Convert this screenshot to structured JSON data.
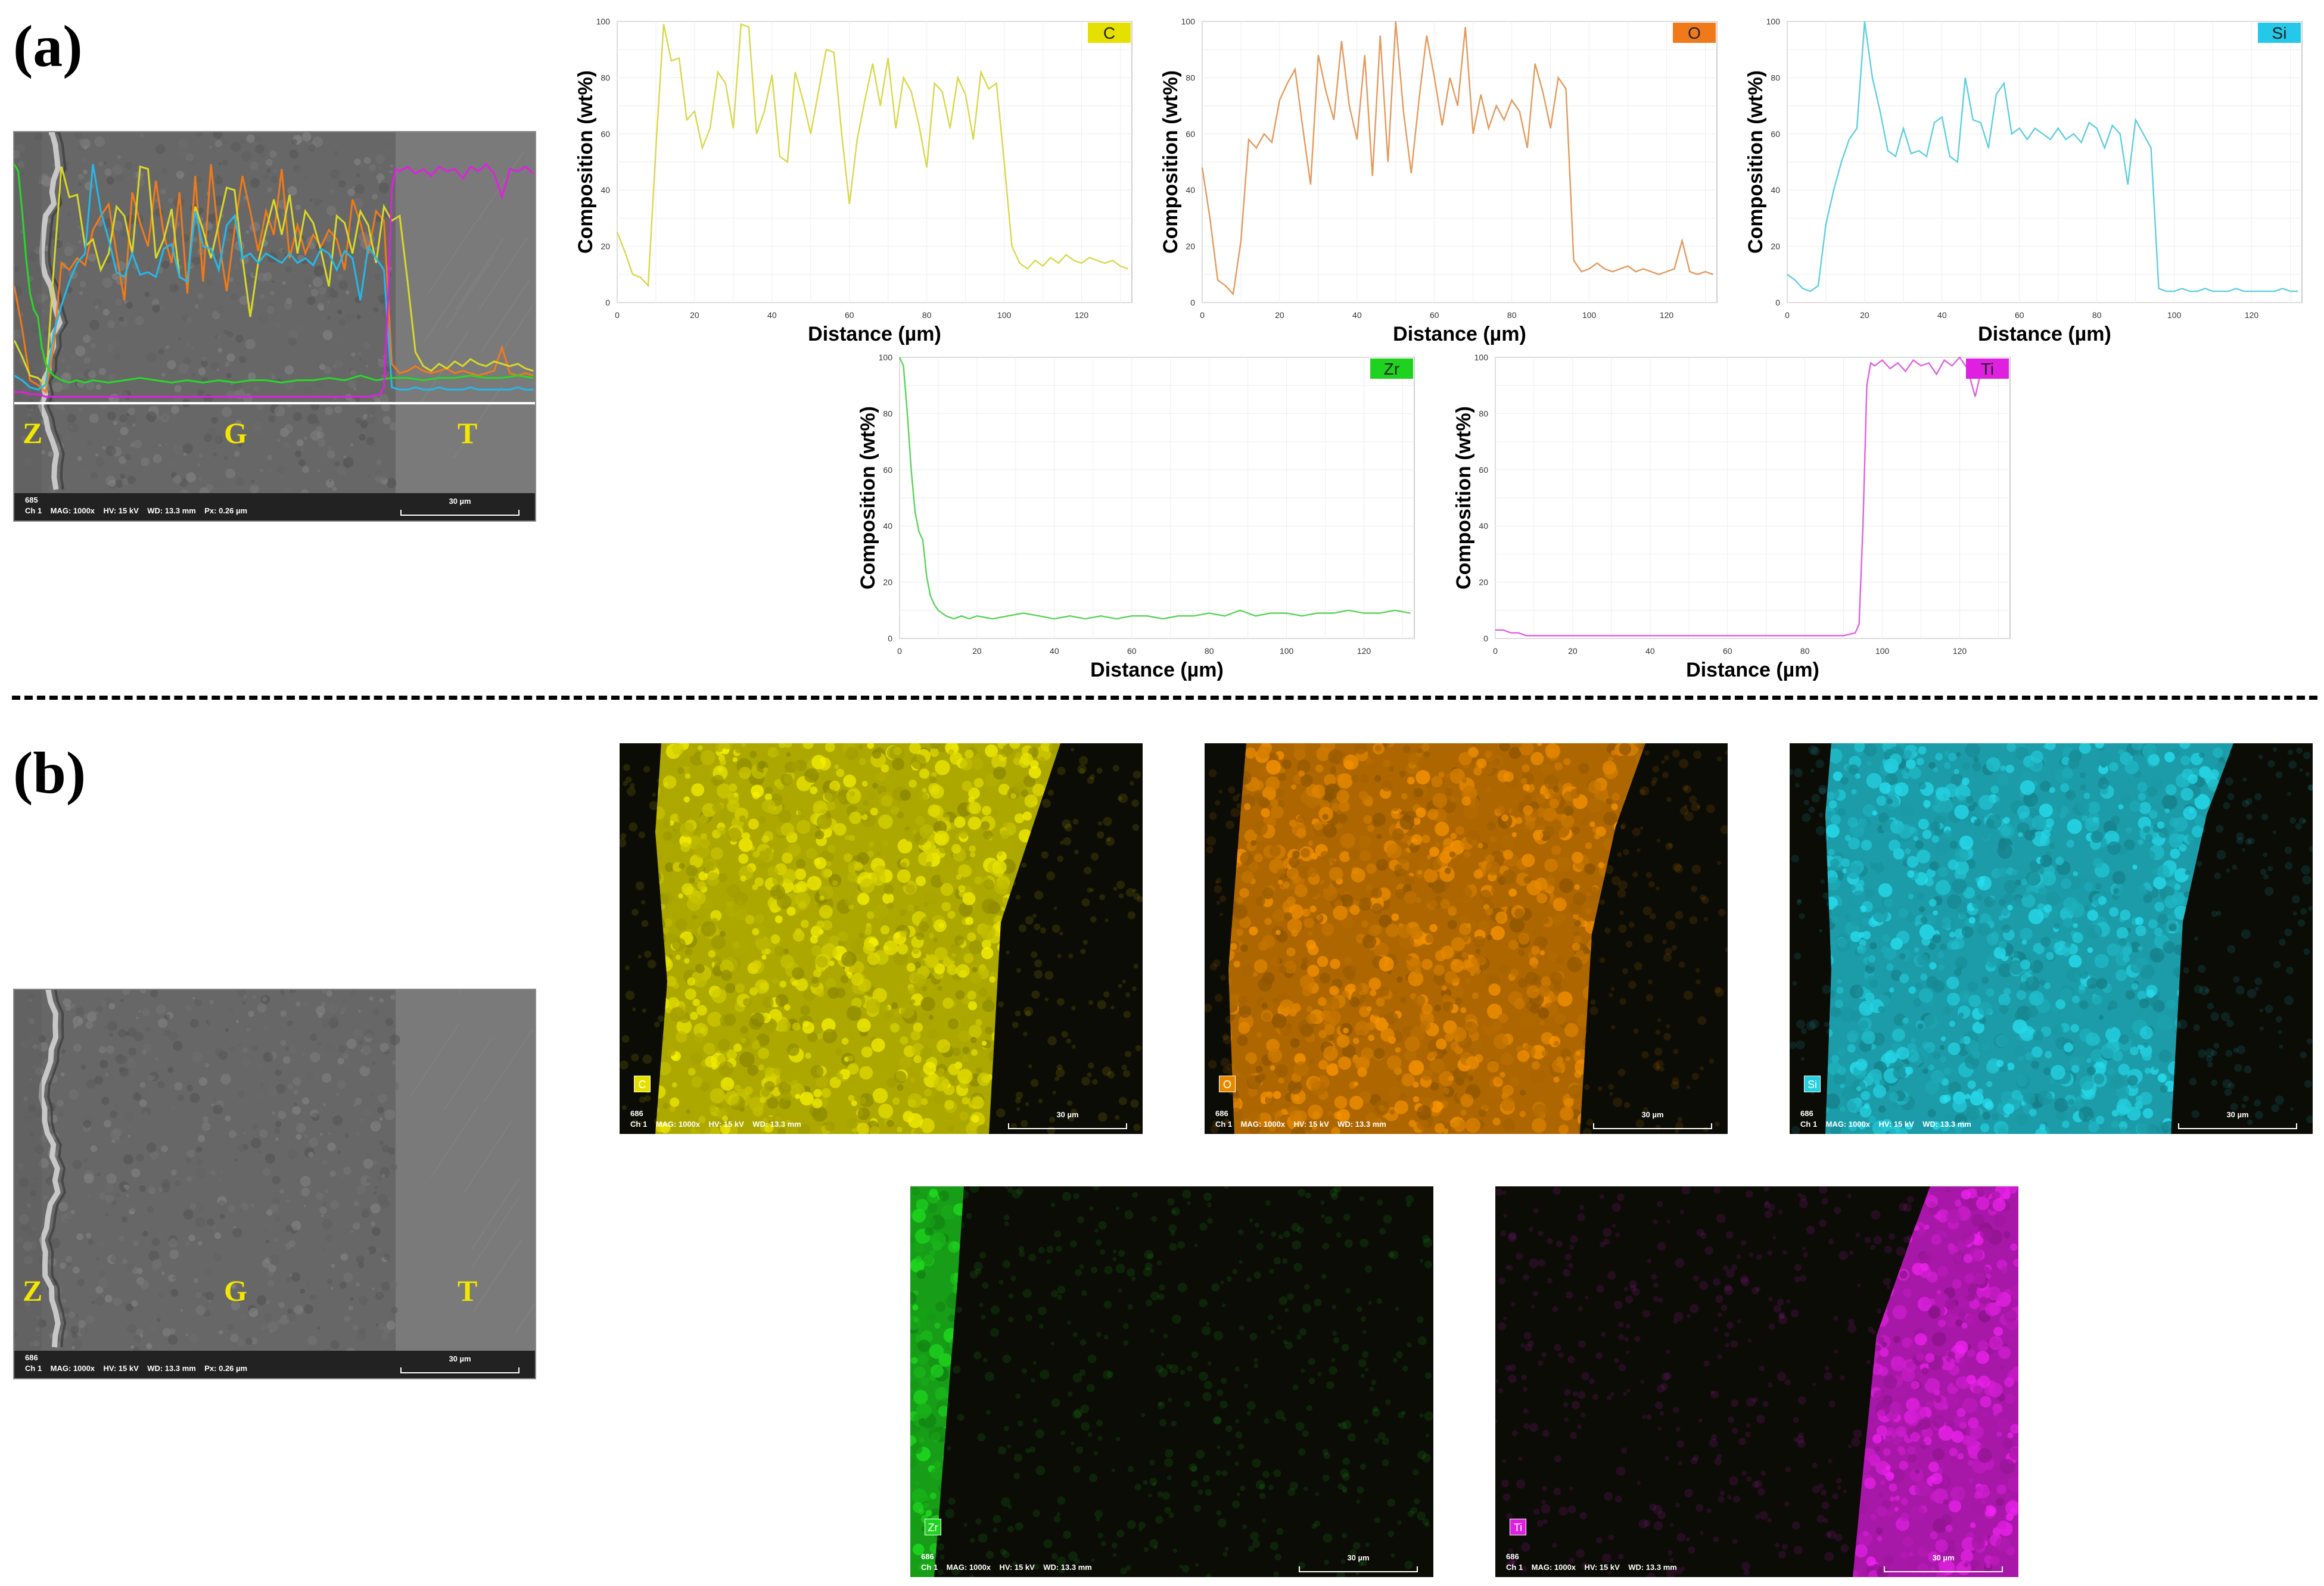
{
  "panels": {
    "a": "(a)",
    "b": "(b)"
  },
  "zones": {
    "z": "Z",
    "g": "G",
    "t": "T"
  },
  "sem_top": {
    "line1": "685",
    "line2": "Ch 1    MAG: 1000x    HV: 15 kV    WD: 13.3 mm    Px: 0.26 µm",
    "scale": "30 µm"
  },
  "sem_bottom": {
    "line1": "686",
    "line2": "Ch 1    MAG: 1000x    HV: 15 kV    WD: 13.3 mm    Px: 0.26 µm",
    "scale": "30 µm"
  },
  "map_info": {
    "line1": "686",
    "line2": "Ch 1    MAG: 1000x    HV: 15 kV    WD: 13.3 mm",
    "scale": "30 µm"
  },
  "maps": [
    {
      "element": "C",
      "color": "#e6e000"
    },
    {
      "element": "O",
      "color": "#e88a00"
    },
    {
      "element": "Si",
      "color": "#25d0e0"
    },
    {
      "element": "Zr",
      "color": "#1fd21f"
    },
    {
      "element": "Ti",
      "color": "#e020e0"
    }
  ],
  "chart_data": [
    {
      "type": "line",
      "element": "C",
      "color": "#d8d84a",
      "tag_color": "#e6e000",
      "xlabel": "Distance (µm)",
      "ylabel": "Composition (wt%)",
      "xlim": [
        0,
        133
      ],
      "ylim": [
        0,
        100
      ],
      "xticks": [
        0,
        20,
        40,
        60,
        80,
        100,
        120
      ],
      "yticks": [
        0,
        20,
        40,
        60,
        80,
        100
      ],
      "x": [
        0,
        2,
        4,
        6,
        8,
        10,
        12,
        14,
        16,
        18,
        20,
        22,
        24,
        26,
        28,
        30,
        32,
        34,
        36,
        38,
        40,
        42,
        44,
        46,
        48,
        50,
        52,
        54,
        56,
        58,
        60,
        62,
        64,
        66,
        68,
        70,
        72,
        74,
        76,
        78,
        80,
        82,
        84,
        86,
        88,
        90,
        92,
        94,
        96,
        98,
        100,
        102,
        104,
        106,
        108,
        110,
        112,
        114,
        116,
        118,
        120,
        122,
        124,
        126,
        128,
        130,
        132
      ],
      "values": [
        25,
        18,
        10,
        9,
        6,
        55,
        99,
        86,
        87,
        65,
        68,
        55,
        62,
        82,
        78,
        62,
        99,
        98,
        60,
        68,
        81,
        52,
        50,
        82,
        72,
        60,
        75,
        90,
        89,
        60,
        35,
        58,
        72,
        85,
        70,
        87,
        62,
        80,
        75,
        63,
        48,
        78,
        75,
        62,
        80,
        74,
        58,
        82,
        76,
        78,
        50,
        20,
        14,
        12,
        15,
        13,
        16,
        14,
        17,
        15,
        14,
        16,
        15,
        14,
        15,
        13,
        12
      ]
    },
    {
      "type": "line",
      "element": "O",
      "color": "#e49a5c",
      "tag_color": "#f07a1a",
      "xlabel": "Distance (µm)",
      "ylabel": "Composition (wt%)",
      "xlim": [
        0,
        133
      ],
      "ylim": [
        0,
        100
      ],
      "xticks": [
        0,
        20,
        40,
        60,
        80,
        100,
        120
      ],
      "yticks": [
        0,
        20,
        40,
        60,
        80,
        100
      ],
      "x": [
        0,
        2,
        4,
        6,
        8,
        10,
        12,
        14,
        16,
        18,
        20,
        22,
        24,
        26,
        28,
        30,
        32,
        34,
        36,
        38,
        40,
        42,
        44,
        46,
        48,
        50,
        52,
        54,
        56,
        58,
        60,
        62,
        64,
        66,
        68,
        70,
        72,
        74,
        76,
        78,
        80,
        82,
        84,
        86,
        88,
        90,
        92,
        94,
        96,
        98,
        100,
        102,
        104,
        106,
        108,
        110,
        112,
        114,
        116,
        118,
        120,
        122,
        124,
        126,
        128,
        130,
        132
      ],
      "values": [
        48,
        30,
        8,
        6,
        3,
        22,
        58,
        55,
        60,
        57,
        72,
        78,
        83,
        62,
        42,
        88,
        75,
        65,
        93,
        70,
        58,
        88,
        45,
        95,
        50,
        100,
        68,
        46,
        72,
        95,
        80,
        63,
        80,
        70,
        98,
        60,
        74,
        62,
        70,
        65,
        72,
        68,
        55,
        85,
        75,
        62,
        80,
        76,
        15,
        11,
        12,
        14,
        12,
        11,
        12,
        13,
        11,
        12,
        11,
        10,
        11,
        12,
        22,
        11,
        10,
        11,
        10
      ]
    },
    {
      "type": "line",
      "element": "Si",
      "color": "#5fcfe0",
      "tag_color": "#25c8e8",
      "xlabel": "Distance (µm)",
      "ylabel": "Composition (wt%)",
      "xlim": [
        0,
        133
      ],
      "ylim": [
        0,
        100
      ],
      "xticks": [
        0,
        20,
        40,
        60,
        80,
        100,
        120
      ],
      "yticks": [
        0,
        20,
        40,
        60,
        80,
        100
      ],
      "x": [
        0,
        2,
        4,
        6,
        8,
        10,
        12,
        14,
        16,
        18,
        20,
        22,
        24,
        26,
        28,
        30,
        32,
        34,
        36,
        38,
        40,
        42,
        44,
        46,
        48,
        50,
        52,
        54,
        56,
        58,
        60,
        62,
        64,
        66,
        68,
        70,
        72,
        74,
        76,
        78,
        80,
        82,
        84,
        86,
        88,
        90,
        92,
        94,
        96,
        98,
        100,
        102,
        104,
        106,
        108,
        110,
        112,
        114,
        116,
        118,
        120,
        122,
        124,
        126,
        128,
        130,
        132
      ],
      "values": [
        10,
        8,
        5,
        4,
        6,
        28,
        40,
        50,
        58,
        62,
        100,
        80,
        68,
        54,
        52,
        62,
        53,
        54,
        52,
        64,
        66,
        52,
        50,
        80,
        65,
        64,
        55,
        74,
        78,
        60,
        62,
        58,
        62,
        60,
        58,
        62,
        58,
        60,
        57,
        64,
        62,
        55,
        63,
        60,
        42,
        65,
        60,
        55,
        5,
        4,
        4,
        5,
        4,
        4,
        5,
        4,
        4,
        4,
        5,
        4,
        4,
        4,
        4,
        4,
        5,
        4,
        4
      ]
    },
    {
      "type": "line",
      "element": "Zr",
      "color": "#5ad35a",
      "tag_color": "#1fd21f",
      "xlabel": "Distance (µm)",
      "ylabel": "Composition (wt%)",
      "xlim": [
        0,
        133
      ],
      "ylim": [
        0,
        100
      ],
      "xticks": [
        0,
        20,
        40,
        60,
        80,
        100,
        120
      ],
      "yticks": [
        0,
        20,
        40,
        60,
        80,
        100
      ],
      "x": [
        0,
        1,
        2,
        3,
        4,
        5,
        6,
        7,
        8,
        9,
        10,
        12,
        14,
        16,
        18,
        20,
        24,
        28,
        32,
        36,
        40,
        44,
        48,
        52,
        56,
        60,
        64,
        68,
        72,
        76,
        80,
        84,
        88,
        92,
        96,
        100,
        104,
        108,
        112,
        116,
        120,
        124,
        128,
        132
      ],
      "values": [
        100,
        97,
        80,
        60,
        45,
        38,
        35,
        22,
        15,
        12,
        10,
        8,
        7,
        8,
        7,
        8,
        7,
        8,
        9,
        8,
        7,
        8,
        7,
        8,
        7,
        8,
        8,
        7,
        8,
        8,
        9,
        8,
        10,
        8,
        9,
        9,
        8,
        9,
        9,
        10,
        9,
        9,
        10,
        9
      ],
      "ylim_display": [
        0,
        100
      ]
    },
    {
      "type": "line",
      "element": "Ti",
      "color": "#e060e0",
      "tag_color": "#e020e0",
      "xlabel": "Distance (µm)",
      "ylabel": "Composition (wt%)",
      "xlim": [
        0,
        133
      ],
      "ylim": [
        0,
        100
      ],
      "xticks": [
        0,
        20,
        40,
        60,
        80,
        100,
        120
      ],
      "yticks": [
        0,
        20,
        40,
        60,
        80,
        100
      ],
      "x": [
        0,
        2,
        4,
        6,
        8,
        10,
        14,
        20,
        30,
        40,
        50,
        60,
        70,
        80,
        90,
        93,
        94,
        95,
        96,
        97,
        98,
        100,
        102,
        104,
        106,
        108,
        110,
        112,
        114,
        116,
        118,
        120,
        122,
        124,
        126,
        128,
        130,
        132
      ],
      "values": [
        3,
        3,
        2,
        2,
        1,
        1,
        1,
        1,
        1,
        1,
        1,
        1,
        1,
        1,
        1,
        2,
        5,
        40,
        90,
        98,
        97,
        99,
        96,
        98,
        95,
        99,
        97,
        98,
        94,
        99,
        97,
        100,
        96,
        86,
        98,
        97,
        99,
        96
      ]
    }
  ]
}
